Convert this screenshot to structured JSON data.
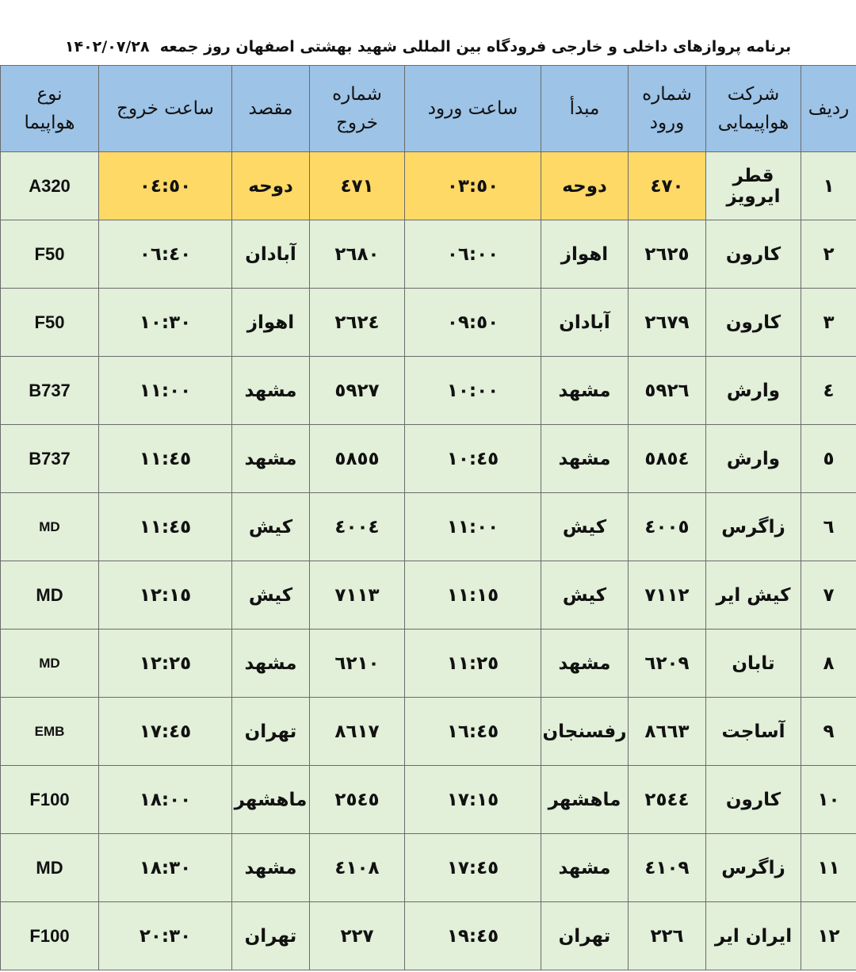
{
  "header": {
    "title": "برنامه پروازهای داخلی و خارجی فرودگاه بین المللی شهید بهشتی اصفهان روز جمعه  ۱۴۰۲/۰۷/۲۸"
  },
  "table": {
    "columns": [
      "ردیف",
      "شرکت هواپیمایی",
      "شماره ورود",
      "مبدأ",
      "ساعت ورود",
      "شماره خروج",
      "مقصد",
      "ساعت خروج",
      "نوع هواپیما"
    ],
    "rows": [
      [
        "١",
        "قطر ایرویز",
        "٤٧٠",
        "دوحه",
        "٠٣:٥٠",
        "٤٧١",
        "دوحه",
        "٠٤:٥٠",
        "A320"
      ],
      [
        "٢",
        "کارون",
        "٢٦٢٥",
        "اهواز",
        "٠٦:٠٠",
        "٢٦٨٠",
        "آبادان",
        "٠٦:٤٠",
        "F50"
      ],
      [
        "٣",
        "کارون",
        "٢٦٧٩",
        "آبادان",
        "٠٩:٥٠",
        "٢٦٢٤",
        "اهواز",
        "١٠:٣٠",
        "F50"
      ],
      [
        "٤",
        "وارش",
        "٥٩٢٦",
        "مشهد",
        "١٠:٠٠",
        "٥٩٢٧",
        "مشهد",
        "١١:٠٠",
        "B737"
      ],
      [
        "٥",
        "وارش",
        "٥٨٥٤",
        "مشهد",
        "١٠:٤٥",
        "٥٨٥٥",
        "مشهد",
        "١١:٤٥",
        "B737"
      ],
      [
        "٦",
        "زاگرس",
        "٤٠٠٥",
        "کیش",
        "١١:٠٠",
        "٤٠٠٤",
        "کیش",
        "١١:٤٥",
        "MD"
      ],
      [
        "٧",
        "کیش ایر",
        "٧١١٢",
        "کیش",
        "١١:١٥",
        "٧١١٣",
        "کیش",
        "١٢:١٥",
        "MD"
      ],
      [
        "٨",
        "تابان",
        "٦٢٠٩",
        "مشهد",
        "١١:٢٥",
        "٦٢١٠",
        "مشهد",
        "١٢:٢٥",
        "MD"
      ],
      [
        "٩",
        "آساجت",
        "٨٦٦٣",
        "رفسنجان",
        "١٦:٤٥",
        "٨٦١٧",
        "تهران",
        "١٧:٤٥",
        "EMB"
      ],
      [
        "١٠",
        "کارون",
        "٢٥٤٤",
        "ماهشهر",
        "١٧:١٥",
        "٢٥٤٥",
        "ماهشهر",
        "١٨:٠٠",
        "F100"
      ],
      [
        "١١",
        "زاگرس",
        "٤١٠٩",
        "مشهد",
        "١٧:٤٥",
        "٤١٠٨",
        "مشهد",
        "١٨:٣٠",
        "MD"
      ],
      [
        "١٢",
        "ایران ایر",
        "٢٢٦",
        "تهران",
        "١٩:٤٥",
        "٢٢٧",
        "تهران",
        "٢٠:٣٠",
        "F100"
      ]
    ]
  }
}
